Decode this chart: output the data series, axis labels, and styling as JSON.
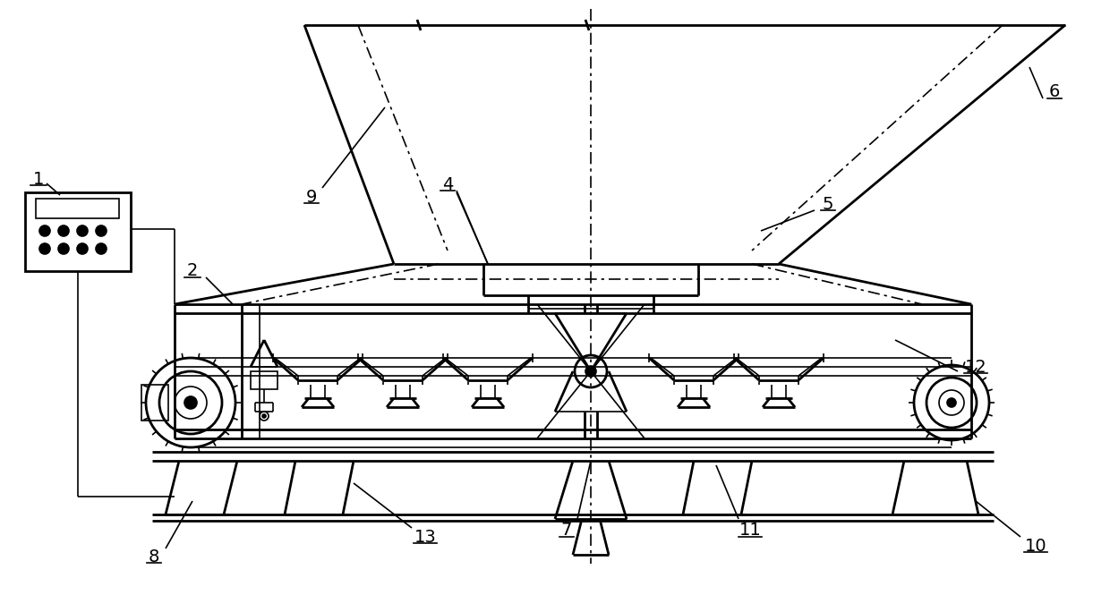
{
  "bg_color": "#ffffff",
  "line_color": "#000000",
  "lw": 1.2,
  "lw2": 2.0,
  "lw3": 2.5,
  "figsize": [
    12.4,
    6.84
  ],
  "dpi": 100
}
